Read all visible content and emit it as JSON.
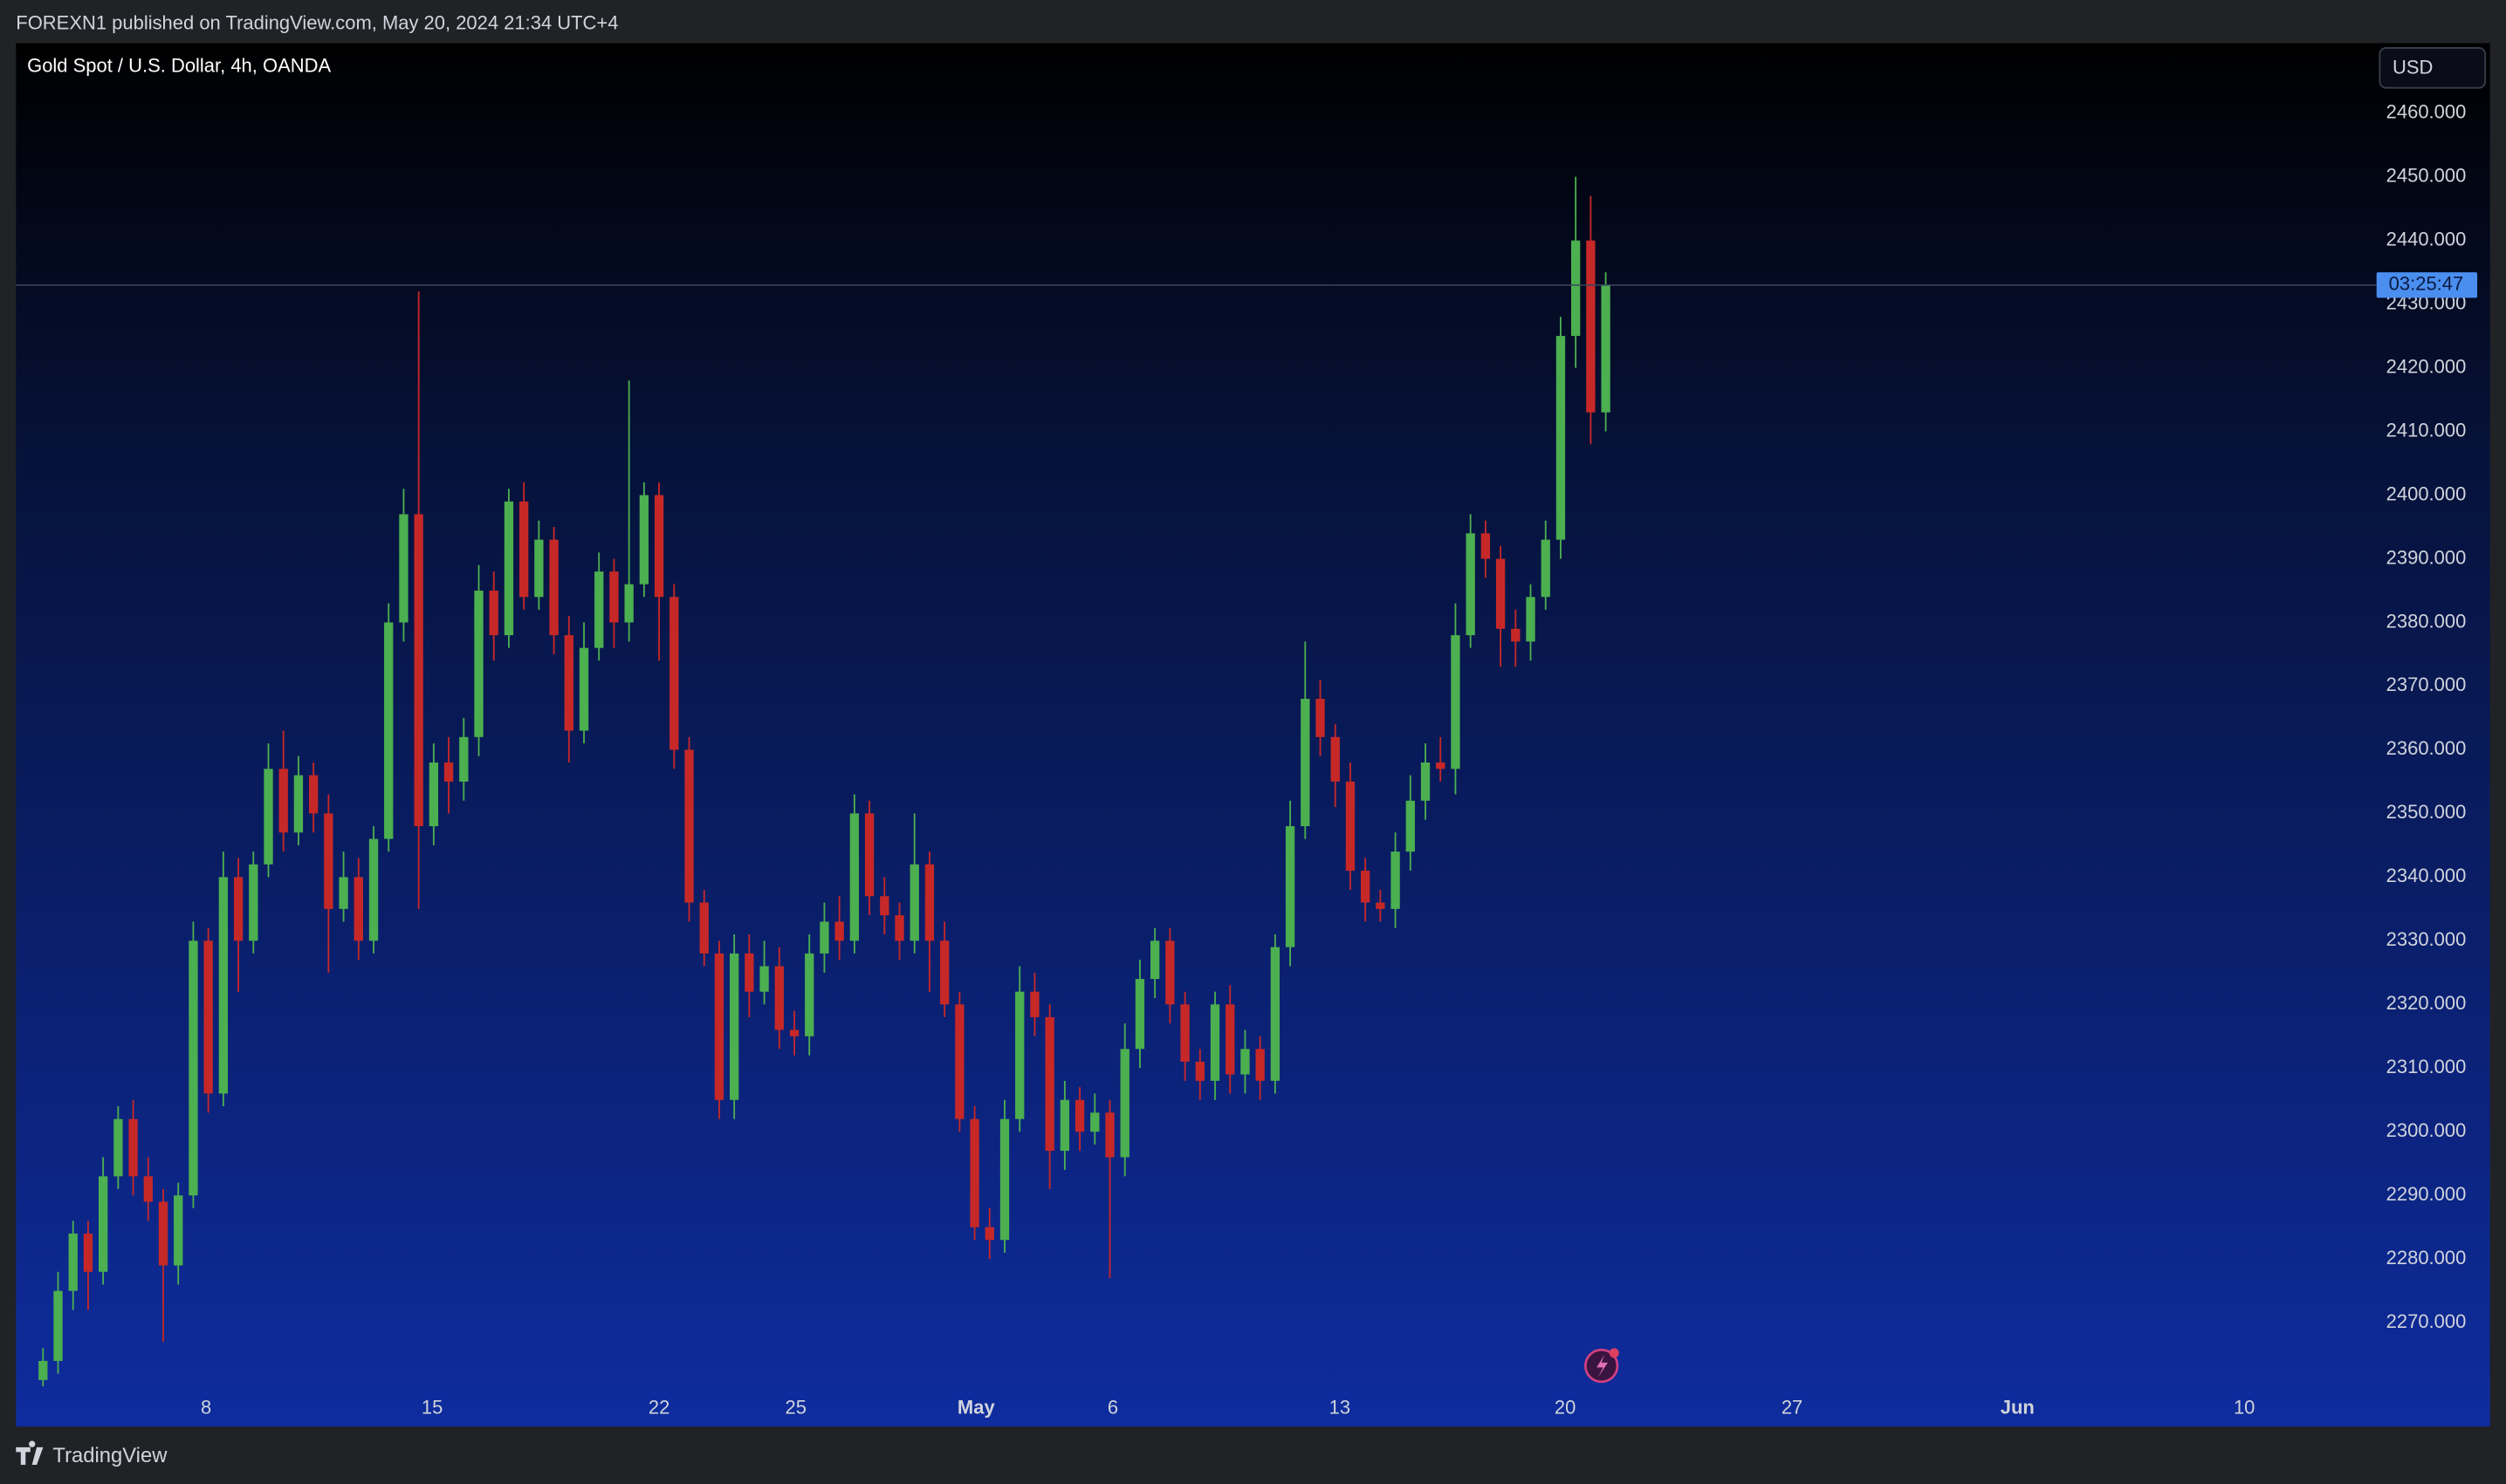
{
  "header": "FOREXN1 published on TradingView.com, May 20, 2024 21:34 UTC+4",
  "footer": "TradingView",
  "chart_data": {
    "type": "candlestick",
    "title": "Gold Spot / U.S. Dollar, 4h, OANDA",
    "currency": "USD",
    "countdown": "03:25:47",
    "up_color": "#4caf50",
    "down_color": "#c62828",
    "open": [
      2261,
      2264,
      2275,
      2284,
      2278,
      2293,
      2302,
      2293,
      2289,
      2279,
      2290,
      2330,
      2306,
      2340,
      2330,
      2342,
      2357,
      2347,
      2356,
      2350,
      2335,
      2340,
      2330,
      2346,
      2380,
      2397,
      2348,
      2358,
      2355,
      2362,
      2385,
      2378,
      2399,
      2384,
      2393,
      2378,
      2363,
      2376,
      2388,
      2380,
      2386,
      2400,
      2384,
      2360,
      2336,
      2328,
      2305,
      2328,
      2322,
      2326,
      2316,
      2315,
      2328,
      2333,
      2330,
      2350,
      2337,
      2334,
      2330,
      2342,
      2330,
      2320,
      2302,
      2285,
      2283,
      2302,
      2322,
      2318,
      2297,
      2305,
      2300,
      2303,
      2296,
      2313,
      2324,
      2330,
      2320,
      2311,
      2308,
      2320,
      2309,
      2313,
      2308,
      2329,
      2348,
      2368,
      2362,
      2355,
      2341,
      2336,
      2335,
      2344,
      2352,
      2358,
      2357,
      2378,
      2394,
      2390,
      2379,
      2377,
      2384,
      2393,
      2425,
      2440,
      2413
    ],
    "high": [
      2266,
      2278,
      2286,
      2286,
      2296,
      2304,
      2305,
      2296,
      2291,
      2292,
      2333,
      2332,
      2344,
      2343,
      2344,
      2361,
      2363,
      2359,
      2358,
      2353,
      2344,
      2343,
      2348,
      2383,
      2401,
      2432,
      2361,
      2362,
      2365,
      2389,
      2388,
      2401,
      2402,
      2396,
      2395,
      2381,
      2380,
      2391,
      2390,
      2418,
      2402,
      2402,
      2386,
      2362,
      2338,
      2330,
      2331,
      2331,
      2330,
      2329,
      2319,
      2331,
      2336,
      2337,
      2353,
      2352,
      2340,
      2336,
      2350,
      2344,
      2333,
      2322,
      2304,
      2288,
      2305,
      2326,
      2325,
      2320,
      2308,
      2307,
      2306,
      2305,
      2317,
      2327,
      2332,
      2332,
      2322,
      2313,
      2322,
      2323,
      2316,
      2315,
      2331,
      2352,
      2377,
      2371,
      2364,
      2358,
      2343,
      2338,
      2347,
      2356,
      2361,
      2362,
      2383,
      2397,
      2396,
      2392,
      2382,
      2386,
      2396,
      2428,
      2450,
      2447,
      2435
    ],
    "low": [
      2260,
      2262,
      2272,
      2272,
      2276,
      2291,
      2290,
      2286,
      2267,
      2276,
      2288,
      2303,
      2304,
      2322,
      2328,
      2340,
      2344,
      2345,
      2347,
      2325,
      2333,
      2327,
      2328,
      2344,
      2377,
      2335,
      2345,
      2350,
      2352,
      2359,
      2374,
      2376,
      2382,
      2382,
      2375,
      2358,
      2361,
      2374,
      2376,
      2377,
      2384,
      2374,
      2357,
      2333,
      2326,
      2302,
      2302,
      2318,
      2320,
      2313,
      2312,
      2312,
      2325,
      2327,
      2328,
      2334,
      2331,
      2327,
      2328,
      2322,
      2318,
      2300,
      2283,
      2280,
      2281,
      2300,
      2315,
      2291,
      2294,
      2297,
      2298,
      2277,
      2293,
      2310,
      2321,
      2317,
      2308,
      2305,
      2305,
      2306,
      2306,
      2305,
      2306,
      2326,
      2346,
      2359,
      2351,
      2338,
      2333,
      2333,
      2332,
      2341,
      2349,
      2355,
      2353,
      2376,
      2387,
      2373,
      2373,
      2374,
      2382,
      2390,
      2420,
      2408,
      2410
    ],
    "close": [
      2264,
      2275,
      2284,
      2278,
      2293,
      2302,
      2293,
      2289,
      2279,
      2290,
      2330,
      2306,
      2340,
      2330,
      2342,
      2357,
      2347,
      2356,
      2350,
      2335,
      2340,
      2330,
      2346,
      2380,
      2397,
      2348,
      2358,
      2355,
      2362,
      2385,
      2378,
      2399,
      2384,
      2393,
      2378,
      2363,
      2376,
      2388,
      2380,
      2386,
      2400,
      2384,
      2360,
      2336,
      2328,
      2305,
      2328,
      2322,
      2326,
      2316,
      2315,
      2328,
      2333,
      2330,
      2350,
      2337,
      2334,
      2330,
      2342,
      2330,
      2320,
      2302,
      2285,
      2283,
      2302,
      2322,
      2318,
      2297,
      2305,
      2300,
      2303,
      2296,
      2313,
      2324,
      2330,
      2320,
      2311,
      2308,
      2320,
      2309,
      2313,
      2308,
      2329,
      2348,
      2368,
      2362,
      2355,
      2341,
      2336,
      2335,
      2344,
      2352,
      2358,
      2357,
      2378,
      2394,
      2390,
      2379,
      2377,
      2384,
      2393,
      2425,
      2440,
      2413,
      2433
    ],
    "xlim": [
      -1.8,
      155.3
    ],
    "xticks": [
      {
        "value": 10.85,
        "label": "8"
      },
      {
        "value": 25.9,
        "label": "15"
      },
      {
        "value": 41.0,
        "label": "22"
      },
      {
        "value": 50.1,
        "label": "25"
      },
      {
        "value": 62.1,
        "label": "May"
      },
      {
        "value": 71.2,
        "label": "6"
      },
      {
        "value": 86.3,
        "label": "13"
      },
      {
        "value": 101.3,
        "label": "20"
      },
      {
        "value": 116.4,
        "label": "27"
      },
      {
        "value": 131.4,
        "label": "Jun"
      },
      {
        "value": 146.5,
        "label": "10"
      }
    ],
    "ylim": [
      2253.7,
      2471.0
    ],
    "yticks": [
      {
        "value": 2270,
        "label": "2270.000"
      },
      {
        "value": 2280,
        "label": "2280.000"
      },
      {
        "value": 2290,
        "label": "2290.000"
      },
      {
        "value": 2300,
        "label": "2300.000"
      },
      {
        "value": 2310,
        "label": "2310.000"
      },
      {
        "value": 2320,
        "label": "2320.000"
      },
      {
        "value": 2330,
        "label": "2330.000"
      },
      {
        "value": 2340,
        "label": "2340.000"
      },
      {
        "value": 2350,
        "label": "2350.000"
      },
      {
        "value": 2360,
        "label": "2360.000"
      },
      {
        "value": 2370,
        "label": "2370.000"
      },
      {
        "value": 2380,
        "label": "2380.000"
      },
      {
        "value": 2390,
        "label": "2390.000"
      },
      {
        "value": 2400,
        "label": "2400.000"
      },
      {
        "value": 2410,
        "label": "2410.000"
      },
      {
        "value": 2420,
        "label": "2420.000"
      },
      {
        "value": 2430,
        "label": "2430.000"
      },
      {
        "value": 2440,
        "label": "2440.000"
      },
      {
        "value": 2450,
        "label": "2450.000"
      },
      {
        "value": 2460,
        "label": "2460.000"
      }
    ]
  }
}
